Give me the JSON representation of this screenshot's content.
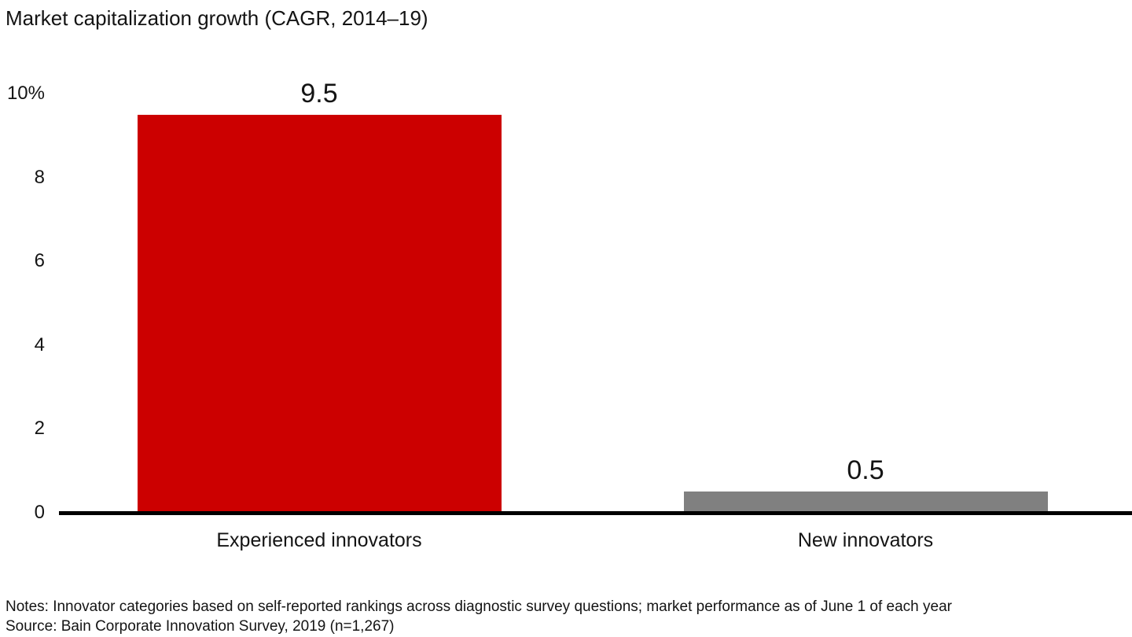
{
  "title": "Market capitalization growth (CAGR, 2014–19)",
  "notes": "Notes: Innovator categories based on self-reported rankings across diagnostic survey questions; market performance as of June 1 of each year",
  "source": "Source: Bain Corporate Innovation Survey, 2019 (n=1,267)",
  "colors": {
    "experienced_bar": "#cc0000",
    "new_bar": "#808080",
    "axis": "#000000",
    "text": "#141414",
    "background": "#ffffff"
  },
  "chart_data": {
    "type": "bar",
    "title": "Market capitalization growth (CAGR, 2014–19)",
    "categories": [
      "Experienced innovators",
      "New innovators"
    ],
    "values": [
      9.5,
      0.5
    ],
    "value_labels": [
      "9.5",
      "0.5"
    ],
    "bar_colors": [
      "#cc0000",
      "#808080"
    ],
    "xlabel": "",
    "ylabel": "",
    "ylim": [
      0,
      10
    ],
    "yticks": [
      {
        "value": 0,
        "label": "0"
      },
      {
        "value": 2,
        "label": "2"
      },
      {
        "value": 4,
        "label": "4"
      },
      {
        "value": 6,
        "label": "6"
      },
      {
        "value": 8,
        "label": "8"
      },
      {
        "value": 10,
        "label": "10%"
      }
    ],
    "grid": false,
    "legend": false,
    "unit": "percent"
  }
}
